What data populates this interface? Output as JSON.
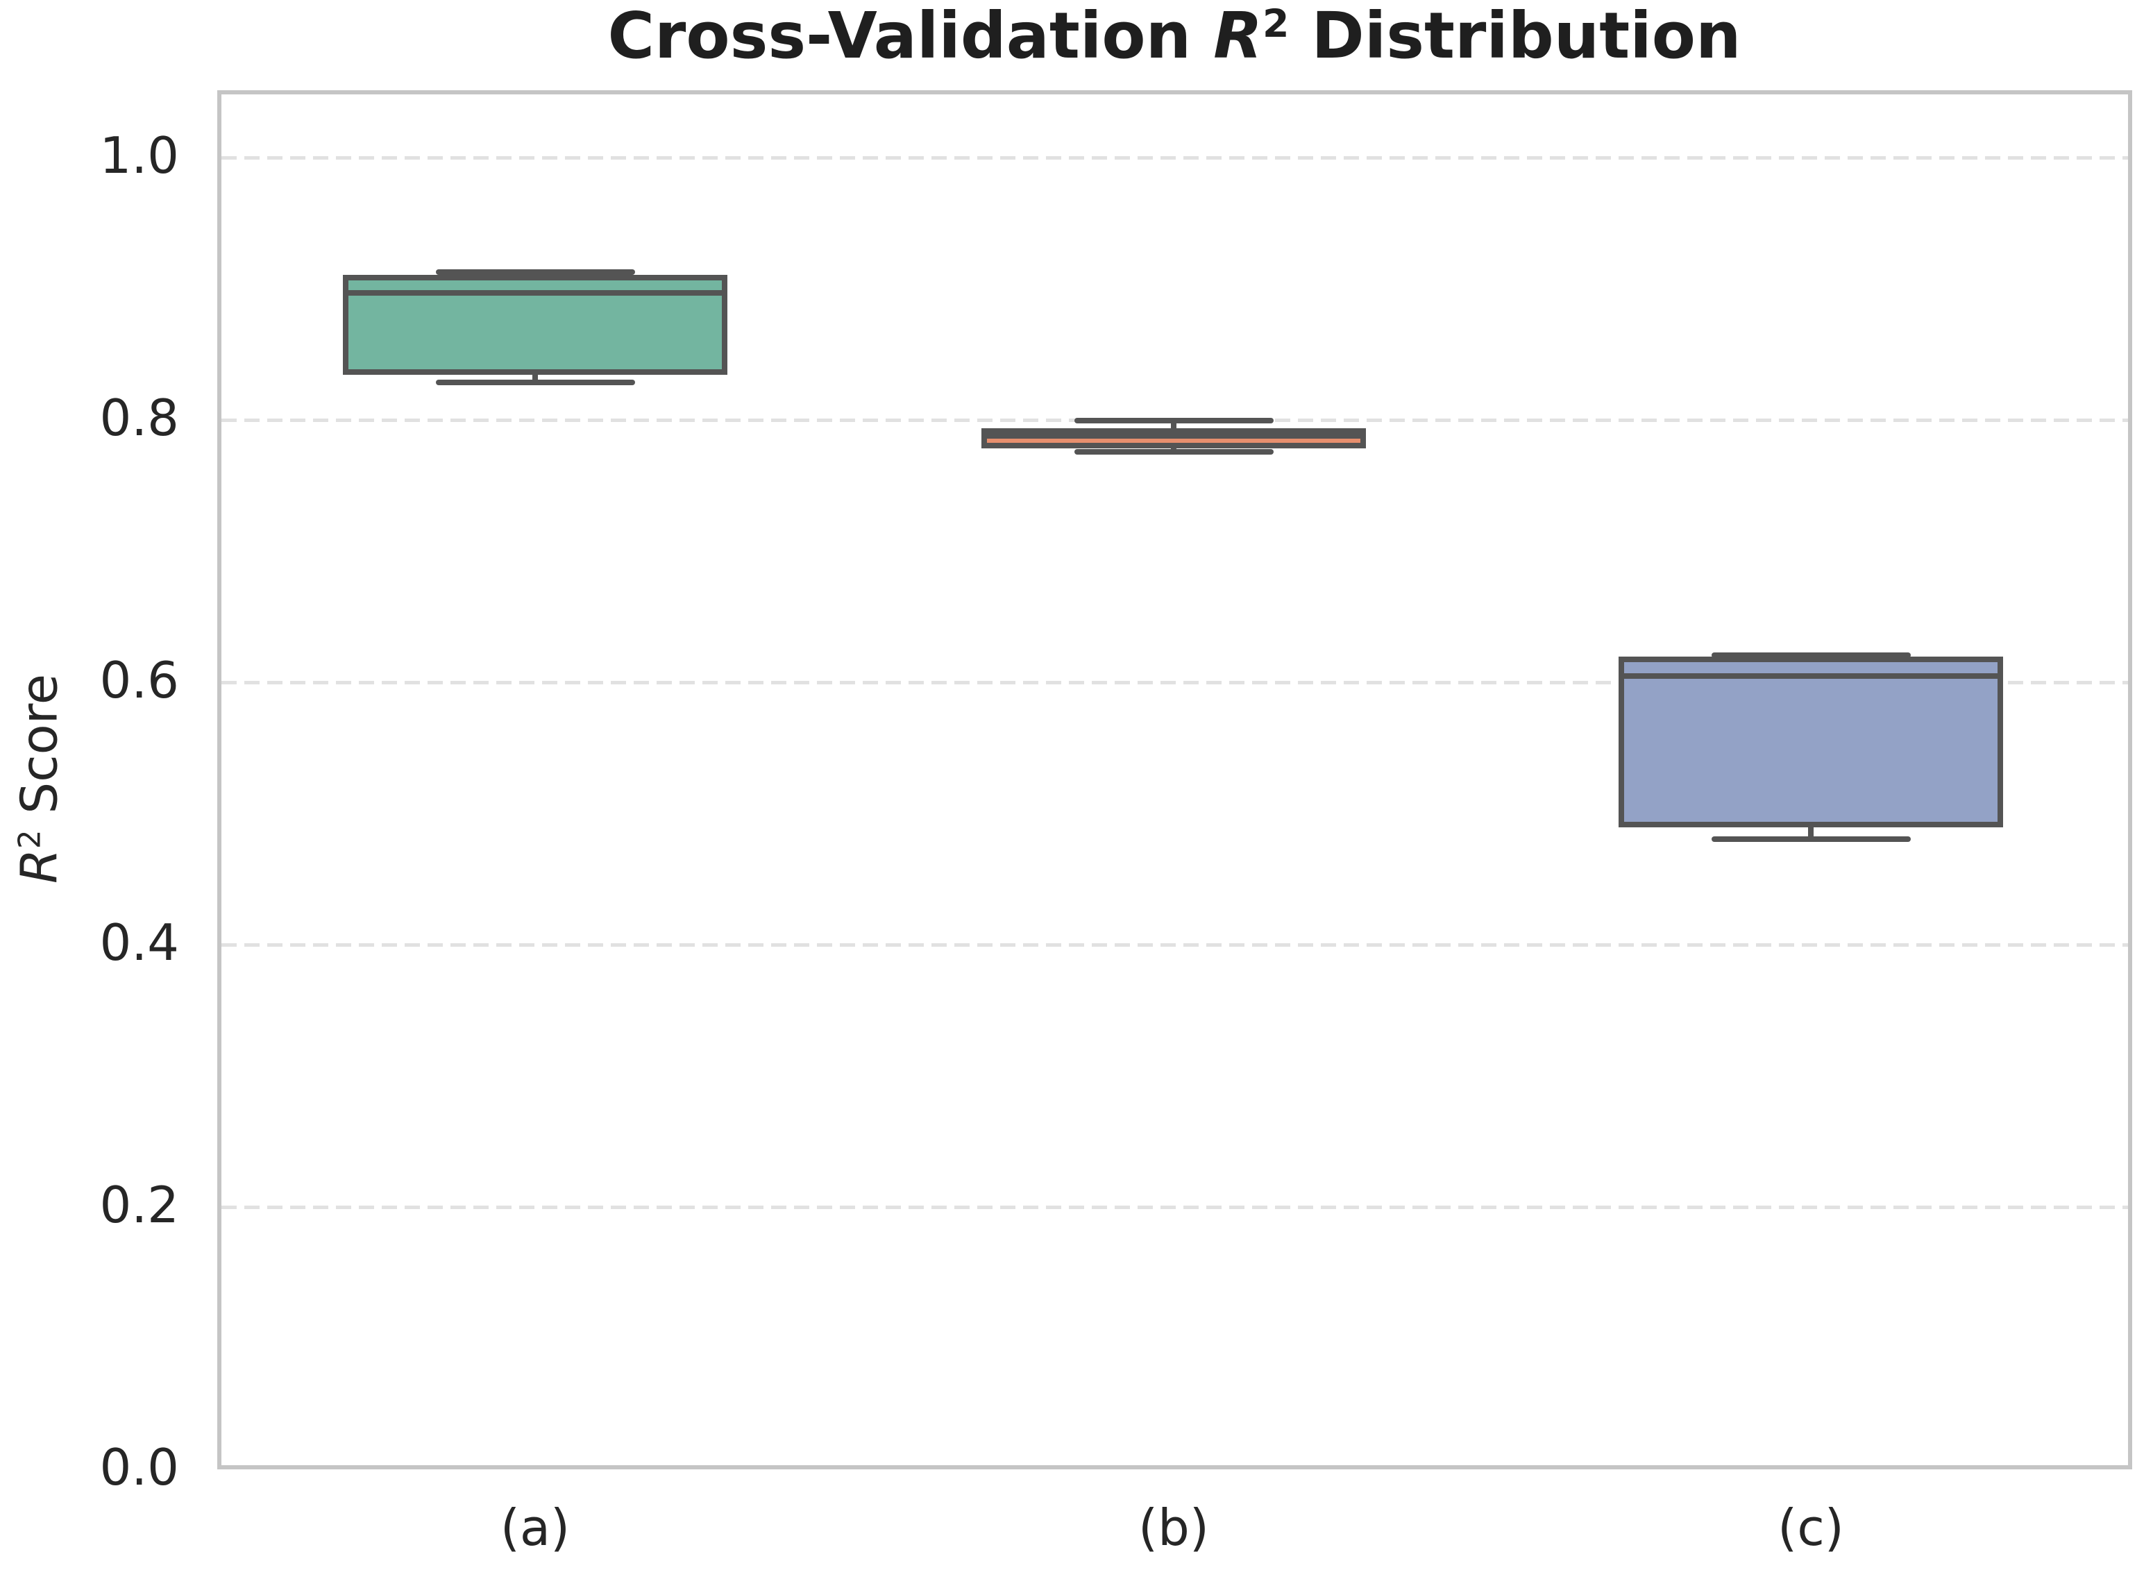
{
  "header": {
    "title_prefix": "Cross-Validation ",
    "title_math": "R",
    "title_sup": "2",
    "title_suffix": " Distribution"
  },
  "y_axis": {
    "label_math": "R",
    "label_sup": "2",
    "label_suffix": " Score",
    "tick_labels": [
      "0.0",
      "0.2",
      "0.4",
      "0.6",
      "0.8",
      "1.0"
    ]
  },
  "x_axis": {
    "tick_labels": [
      "(a)",
      "(b)",
      "(c)"
    ]
  },
  "chart_data": {
    "type": "boxplot",
    "title": "Cross-Validation R² Distribution",
    "ylabel": "R² Score",
    "xlabel": "",
    "categories": [
      "(a)",
      "(b)",
      "(c)"
    ],
    "series": [
      {
        "category": "(a)",
        "whisker_low": 0.827,
        "q1": 0.835,
        "median": 0.895,
        "q3": 0.907,
        "whisker_high": 0.911,
        "fill_color": "#73B5A0"
      },
      {
        "category": "(b)",
        "whisker_low": 0.774,
        "q1": 0.779,
        "median": 0.786,
        "q3": 0.79,
        "whisker_high": 0.798,
        "fill_color": "#E78F6E"
      },
      {
        "category": "(c)",
        "whisker_low": 0.479,
        "q1": 0.49,
        "median": 0.603,
        "q3": 0.616,
        "whisker_high": 0.619,
        "fill_color": "#93A2C6"
      }
    ],
    "ylim": [
      0,
      1.05
    ],
    "yticks": [
      0.0,
      0.2,
      0.4,
      0.6,
      0.8,
      1.0
    ],
    "grid": "horizontal dashed lines",
    "legend": "none",
    "outliers": [],
    "box_edge_color": "#545454",
    "grid_color": "#e1e1e1",
    "spine_color": "#c5c5c5",
    "text_color": "#262626"
  }
}
